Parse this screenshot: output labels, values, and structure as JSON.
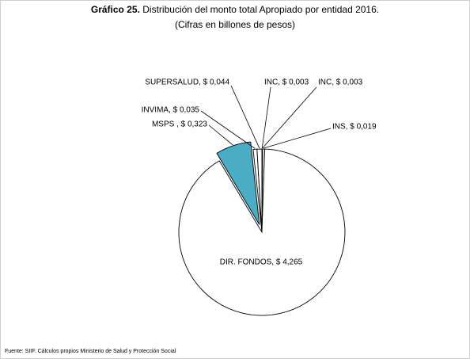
{
  "chart_data": {
    "type": "pie",
    "title_prefix": "Gráfico 25.",
    "title": "Distribución del monto total Apropiado por entidad 2016.",
    "subtitle": "(Cifras en billones de pesos)",
    "values": [
      0.003,
      0.003,
      0.019,
      4.265,
      0.323,
      0.035,
      0.044
    ],
    "value_labels": [
      "INC, $ 0,003",
      "INC, $ 0,003",
      "INS, $ 0,019",
      "DIR. FONDOS, $ 4,265",
      "MSPS , $ 0,323",
      "INVIMA, $ 0,035",
      "SUPERSALUD, $ 0,044"
    ],
    "colors": [
      "#ffffff",
      "#ffffff",
      "#ffffff",
      "#ffffff",
      "#4bacc6",
      "#ffffff",
      "#ffffff"
    ],
    "source": "Fuente: SIIF. Cálculos propios Ministerio de Salud y Protección Social"
  }
}
